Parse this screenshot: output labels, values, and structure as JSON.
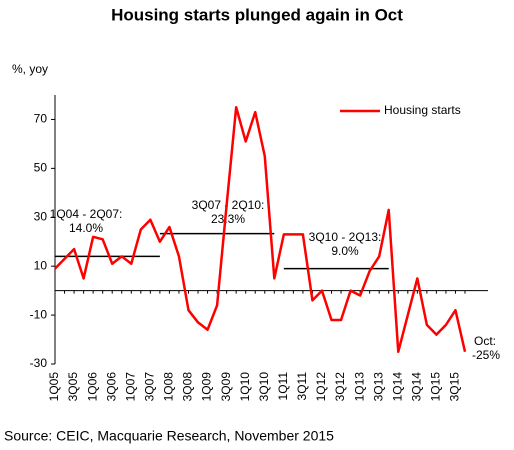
{
  "chart_data": {
    "type": "line",
    "title": "Housing starts plunged again in Oct",
    "y_label": "%, yoy",
    "source": "Source: CEIC, Macquarie Research, November 2015",
    "categories": [
      "1Q05",
      null,
      "3Q05",
      null,
      "1Q06",
      null,
      "3Q06",
      null,
      "1Q07",
      null,
      "3Q07",
      null,
      "1Q08",
      null,
      "3Q08",
      null,
      "1Q09",
      null,
      "3Q09",
      null,
      "1Q10",
      null,
      "3Q10",
      null,
      "1Q11",
      null,
      "3Q11",
      null,
      "1Q12",
      null,
      "3Q12",
      null,
      "1Q13",
      null,
      "3Q13",
      null,
      "1Q14",
      null,
      "3Q14",
      null,
      "1Q15",
      null,
      "3Q15",
      null
    ],
    "series": [
      {
        "name": "Housing starts",
        "color": "#ff0000",
        "values": [
          9,
          13,
          17,
          5,
          22,
          21,
          11,
          14,
          11,
          25,
          29,
          20,
          26,
          14,
          -8,
          -13,
          -16,
          -6,
          35,
          75,
          61,
          73,
          55,
          5,
          23,
          23,
          23,
          -4,
          0,
          -12,
          -12,
          0,
          -2,
          8,
          14,
          33,
          -25,
          -10,
          5,
          -14,
          -18,
          -14,
          -8,
          -25
        ]
      }
    ],
    "averages": [
      {
        "label": "1Q04 - 2Q07:",
        "value_label": "14.0%",
        "value": 14.0
      },
      {
        "label": "3Q07 - 2Q10:",
        "value_label": "23.3%",
        "value": 23.3
      },
      {
        "label": "3Q10 - 2Q13:",
        "value_label": "9.0%",
        "value": 9.0
      }
    ],
    "end_annotation": {
      "label": "Oct:",
      "value_label": "-25%"
    },
    "ylim": [
      -30,
      80
    ],
    "yticks": [
      -30,
      -10,
      10,
      30,
      50,
      70
    ],
    "legend": "top-right",
    "grid": false
  }
}
